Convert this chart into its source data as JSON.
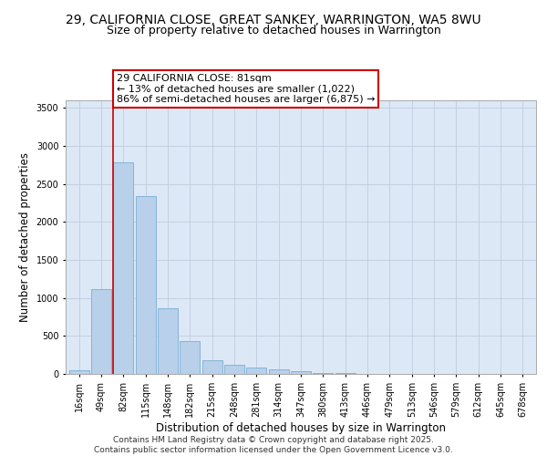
{
  "title": "29, CALIFORNIA CLOSE, GREAT SANKEY, WARRINGTON, WA5 8WU",
  "subtitle": "Size of property relative to detached houses in Warrington",
  "xlabel": "Distribution of detached houses by size in Warrington",
  "ylabel": "Number of detached properties",
  "categories": [
    "16sqm",
    "49sqm",
    "82sqm",
    "115sqm",
    "148sqm",
    "182sqm",
    "215sqm",
    "248sqm",
    "281sqm",
    "314sqm",
    "347sqm",
    "380sqm",
    "413sqm",
    "446sqm",
    "479sqm",
    "513sqm",
    "546sqm",
    "579sqm",
    "612sqm",
    "645sqm",
    "678sqm"
  ],
  "values": [
    50,
    1120,
    2780,
    2340,
    870,
    430,
    180,
    120,
    90,
    60,
    35,
    15,
    8,
    4,
    2,
    1,
    0,
    0,
    0,
    0,
    0
  ],
  "bar_color": "#b8d0ea",
  "bar_edge_color": "#7aaed4",
  "vline_color": "#cc0000",
  "annotation_text": "29 CALIFORNIA CLOSE: 81sqm\n← 13% of detached houses are smaller (1,022)\n86% of semi-detached houses are larger (6,875) →",
  "annotation_box_edge": "#cc0000",
  "ylim": [
    0,
    3600
  ],
  "yticks": [
    0,
    500,
    1000,
    1500,
    2000,
    2500,
    3000,
    3500
  ],
  "bg_color": "#dce8f5",
  "grid_color": "#c0cce0",
  "footer_line1": "Contains HM Land Registry data © Crown copyright and database right 2025.",
  "footer_line2": "Contains public sector information licensed under the Open Government Licence v3.0.",
  "title_fontsize": 10,
  "subtitle_fontsize": 9,
  "axis_label_fontsize": 8.5,
  "tick_fontsize": 7,
  "annotation_fontsize": 8,
  "footer_fontsize": 6.5
}
